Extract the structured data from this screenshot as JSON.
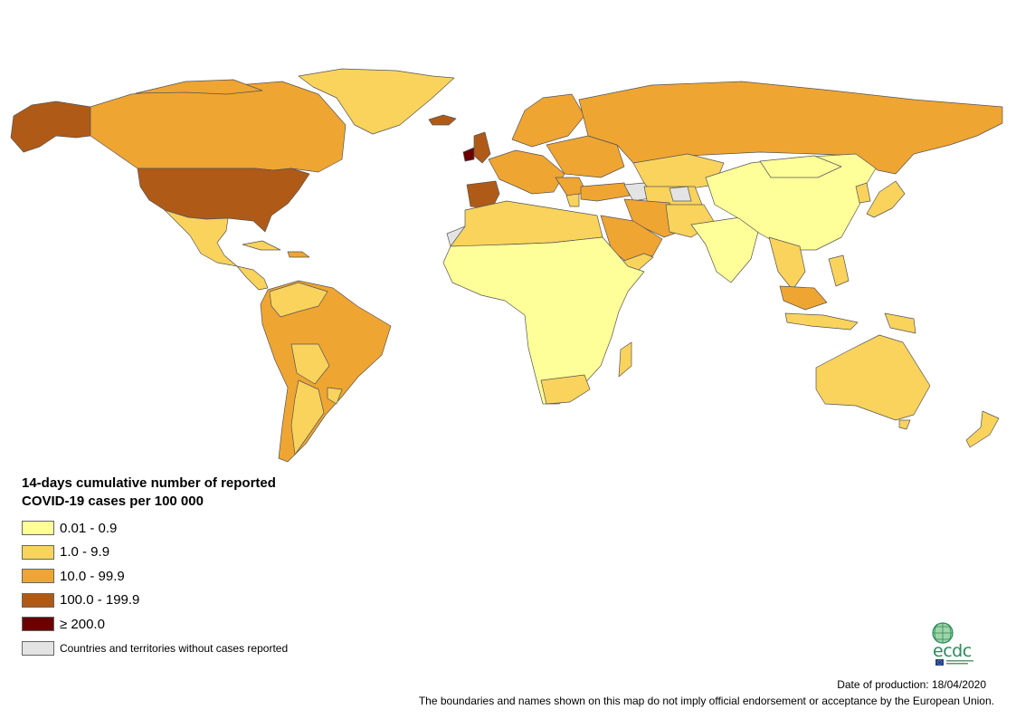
{
  "legend": {
    "title": "14-days cumulative number of reported COVID-19 cases per 100 000",
    "items": [
      {
        "label": "0.01 - 0.9",
        "color": "#ffff99"
      },
      {
        "label": "1.0 - 9.9",
        "color": "#f9d35c"
      },
      {
        "label": "10.0 - 99.9",
        "color": "#efa532"
      },
      {
        "label": "100.0 - 199.9",
        "color": "#b05a18"
      },
      {
        "label": "≥ 200.0",
        "color": "#6b0000"
      },
      {
        "label": "Countries and territories without cases reported",
        "color": "#e3e3e3"
      }
    ]
  },
  "colors": {
    "c1": "#ffff99",
    "c2": "#f9d35c",
    "c3": "#efa532",
    "c4": "#b05a18",
    "c5": "#6b0000",
    "none": "#e3e3e3",
    "border": "#555555"
  },
  "logo": {
    "text": "ecdc"
  },
  "footer": {
    "date": "Date of production: 18/04/2020",
    "disclaimer": "The boundaries and names shown on this map do not imply official endorsement or acceptance by the European Union."
  }
}
